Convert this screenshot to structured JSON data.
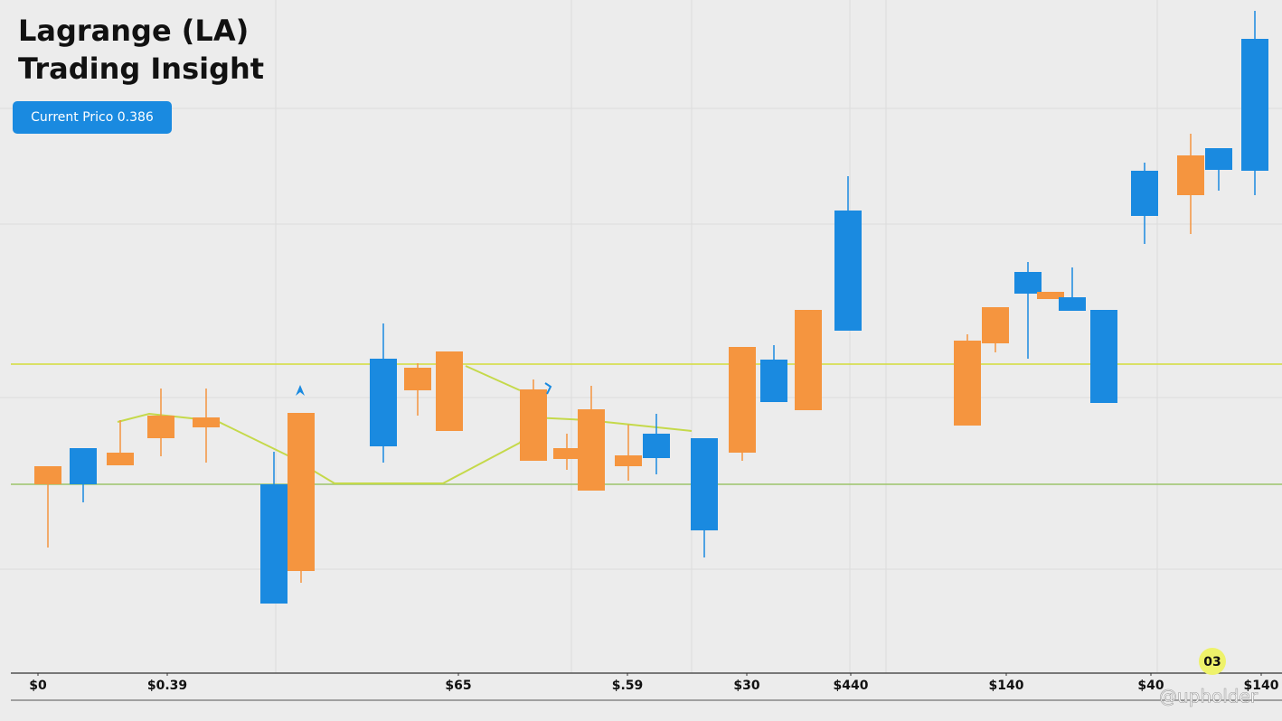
{
  "chart_data": {
    "type": "candlestick",
    "title": "Lagrange (LA)",
    "subtitle": "Trading Insight",
    "current_price_label": "Current Prico 0.386",
    "badge_label": "03",
    "watermark": "@upholder",
    "up_color": "#1a8ae0",
    "down_color": "#f5953f",
    "xlim": [
      0,
      141.8
    ],
    "ylim": [
      0,
      74.5
    ],
    "xticks": [
      {
        "value": 4.2,
        "label": "$0"
      },
      {
        "value": 18.5,
        "label": "$0.39"
      },
      {
        "value": 50.7,
        "label": "$65"
      },
      {
        "value": 69.4,
        "label": "$.59"
      },
      {
        "value": 82.6,
        "label": "$30"
      },
      {
        "value": 94.1,
        "label": "$440"
      },
      {
        "value": 111.3,
        "label": "$140"
      },
      {
        "value": 127.3,
        "label": "$40"
      },
      {
        "value": 139.5,
        "label": "$140"
      }
    ],
    "candles": [
      {
        "x": 5.3,
        "open": 22.9,
        "high": 22.9,
        "low": 13.9,
        "close": 20.9
      },
      {
        "x": 9.2,
        "open": 20.9,
        "high": 24.9,
        "low": 18.9,
        "close": 24.9
      },
      {
        "x": 13.3,
        "open": 24.4,
        "high": 28.0,
        "low": 23.0,
        "close": 23.0
      },
      {
        "x": 17.8,
        "open": 28.5,
        "high": 31.5,
        "low": 24.0,
        "close": 26.0
      },
      {
        "x": 22.8,
        "open": 28.3,
        "high": 31.5,
        "low": 23.3,
        "close": 27.2
      },
      {
        "x": 30.3,
        "open": 7.7,
        "high": 24.5,
        "low": 7.7,
        "close": 20.9
      },
      {
        "x": 33.3,
        "open": 28.8,
        "high": 28.8,
        "low": 10.0,
        "close": 11.3
      },
      {
        "x": 42.4,
        "open": 25.1,
        "high": 38.7,
        "low": 23.3,
        "close": 34.8
      },
      {
        "x": 46.2,
        "open": 33.8,
        "high": 34.3,
        "low": 28.5,
        "close": 31.3
      },
      {
        "x": 49.7,
        "open": 35.6,
        "high": 35.6,
        "low": 26.8,
        "close": 26.8
      },
      {
        "x": 59.0,
        "open": 31.4,
        "high": 32.5,
        "low": 23.5,
        "close": 23.5
      },
      {
        "x": 62.7,
        "open": 24.9,
        "high": 26.5,
        "low": 22.5,
        "close": 23.7
      },
      {
        "x": 65.4,
        "open": 29.2,
        "high": 31.8,
        "low": 20.2,
        "close": 20.2
      },
      {
        "x": 69.5,
        "open": 24.1,
        "high": 27.5,
        "low": 21.3,
        "close": 22.9
      },
      {
        "x": 72.6,
        "open": 23.8,
        "high": 28.7,
        "low": 22.0,
        "close": 26.5
      },
      {
        "x": 77.9,
        "open": 15.8,
        "high": 26.0,
        "low": 12.8,
        "close": 26.0
      },
      {
        "x": 82.1,
        "open": 36.1,
        "high": 36.1,
        "low": 23.5,
        "close": 24.4
      },
      {
        "x": 85.6,
        "open": 30.0,
        "high": 36.3,
        "low": 30.0,
        "close": 34.7
      },
      {
        "x": 89.4,
        "open": 40.2,
        "high": 40.2,
        "low": 29.1,
        "close": 29.1
      },
      {
        "x": 93.8,
        "open": 37.9,
        "high": 55.0,
        "low": 37.9,
        "close": 51.2
      },
      {
        "x": 107.0,
        "open": 36.8,
        "high": 37.5,
        "low": 27.4,
        "close": 27.4
      },
      {
        "x": 110.1,
        "open": 40.5,
        "high": 40.5,
        "low": 35.5,
        "close": 36.5
      },
      {
        "x": 113.7,
        "open": 42.0,
        "high": 45.5,
        "low": 34.8,
        "close": 44.4
      },
      {
        "x": 116.2,
        "open": 42.2,
        "high": 42.2,
        "low": 41.4,
        "close": 41.4
      },
      {
        "x": 118.6,
        "open": 40.1,
        "high": 44.9,
        "low": 40.1,
        "close": 41.6
      },
      {
        "x": 122.1,
        "open": 29.9,
        "high": 40.2,
        "low": 29.9,
        "close": 40.2
      },
      {
        "x": 126.6,
        "open": 50.6,
        "high": 56.5,
        "low": 47.5,
        "close": 55.6
      },
      {
        "x": 131.7,
        "open": 57.3,
        "high": 59.7,
        "low": 48.6,
        "close": 52.9
      },
      {
        "x": 134.8,
        "open": 55.7,
        "high": 58.1,
        "low": 53.4,
        "close": 58.1
      },
      {
        "x": 138.8,
        "open": 55.6,
        "high": 73.3,
        "low": 52.9,
        "close": 70.2
      }
    ],
    "moving_average": {
      "color": "#c5d94a",
      "x": [
        13.0,
        16.5,
        24.0,
        32.0,
        37.0,
        49.0,
        57.5,
        59.0,
        65.0,
        76.5,
        null,
        51.5,
        57.5
      ],
      "values": [
        27.8,
        28.7,
        27.9,
        24.0,
        21.0,
        21.0,
        25.5,
        28.3,
        28.0,
        26.8,
        null,
        34.0,
        31.3
      ]
    },
    "reference_lines": [
      {
        "value": 34.2,
        "color": "#d4dc3a"
      },
      {
        "value": 20.9,
        "color": "#9bc46a"
      }
    ]
  }
}
